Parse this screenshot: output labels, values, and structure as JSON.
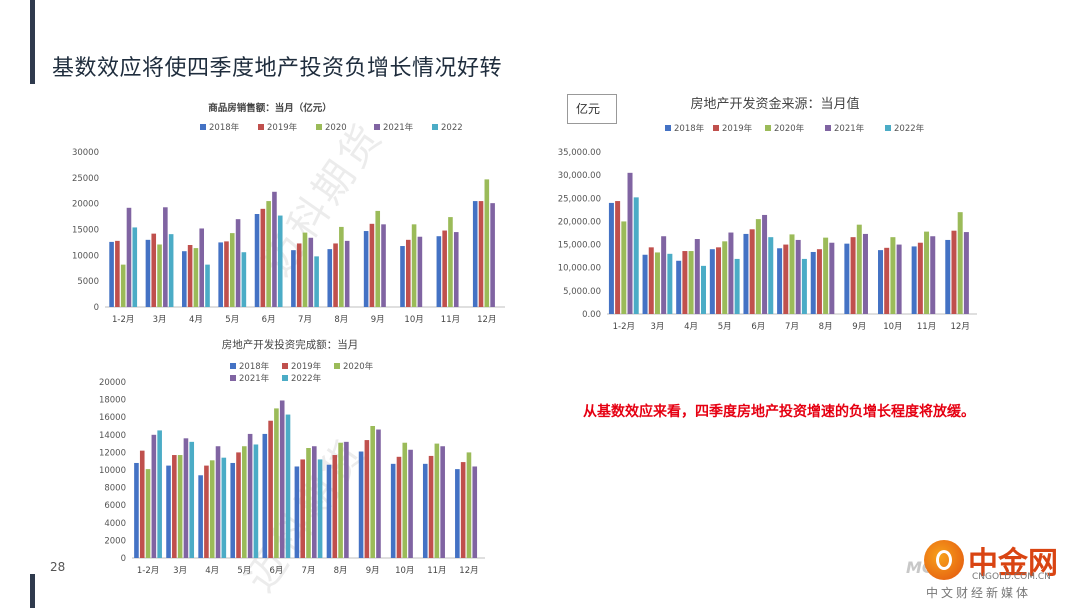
{
  "slide": {
    "title": "基数效应将使四季度地产投资负增长情况好转",
    "page_number": "28",
    "note": "从基数效应来看，四季度房地产投资增速的负增长程度将放缓。",
    "watermark_text": "迈科期货",
    "colors": {
      "s2018": "#4472c4",
      "s2019": "#c0504d",
      "s2020": "#9bbb59",
      "s2021": "#8064a2",
      "s2022": "#4bacc6"
    }
  },
  "logo": {
    "name": "中金网",
    "domain": "CNGOLD.COM.CN",
    "subtitle": "中文财经新媒体",
    "mark": "MOK"
  },
  "chart_data": [
    {
      "type": "bar",
      "title": "商品房销售额：当月（亿元）",
      "categories": [
        "1-2月",
        "3月",
        "4月",
        "5月",
        "6月",
        "7月",
        "8月",
        "9月",
        "10月",
        "11月",
        "12月"
      ],
      "ylim": [
        0,
        30000
      ],
      "yticks": [
        "0",
        "5000",
        "10000",
        "15000",
        "20000",
        "25000",
        "30000"
      ],
      "grid": false,
      "legend": "top",
      "series": [
        {
          "name": "2018年",
          "values": [
            12600,
            13000,
            10800,
            12500,
            18000,
            11000,
            11200,
            14700,
            11800,
            13700,
            20500
          ]
        },
        {
          "name": "2019年",
          "values": [
            12800,
            14200,
            12000,
            12700,
            19000,
            12300,
            12300,
            16100,
            13000,
            14800,
            20500
          ]
        },
        {
          "name": "2020",
          "values": [
            8200,
            12100,
            11400,
            14300,
            20500,
            14400,
            15500,
            18600,
            16000,
            17400,
            24700
          ]
        },
        {
          "name": "2021年",
          "values": [
            19200,
            19300,
            15200,
            17000,
            22300,
            13400,
            12800,
            16000,
            13600,
            14500,
            20100
          ]
        },
        {
          "name": "2022",
          "values": [
            15400,
            14100,
            8200,
            10600,
            17700,
            9800,
            null,
            null,
            null,
            null,
            null
          ]
        }
      ]
    },
    {
      "type": "bar",
      "title": "房地产开发资金来源：当月值",
      "unit": "亿元",
      "categories": [
        "1-2月",
        "3月",
        "4月",
        "5月",
        "6月",
        "7月",
        "8月",
        "9月",
        "10月",
        "11月",
        "12月"
      ],
      "ylim": [
        0,
        35000
      ],
      "yticks": [
        "0.00",
        "5,000.00",
        "10,000.00",
        "15,000.00",
        "20,000.00",
        "25,000.00",
        "30,000.00",
        "35,000.00"
      ],
      "grid": false,
      "legend": "top",
      "series": [
        {
          "name": "2018年",
          "values": [
            24000,
            12800,
            11500,
            14000,
            17300,
            14200,
            13400,
            15200,
            13800,
            14600,
            16000
          ]
        },
        {
          "name": "2019年",
          "values": [
            24400,
            14400,
            13600,
            14400,
            18300,
            15000,
            14000,
            16600,
            14300,
            15400,
            18000
          ]
        },
        {
          "name": "2020年",
          "values": [
            20000,
            13300,
            13600,
            15700,
            20500,
            17200,
            16500,
            19300,
            16600,
            17800,
            22000
          ]
        },
        {
          "name": "2021年",
          "values": [
            30500,
            16800,
            16200,
            17600,
            21400,
            16000,
            15400,
            17300,
            15000,
            16800,
            17700
          ]
        },
        {
          "name": "2022年",
          "values": [
            25200,
            13000,
            10400,
            11900,
            16600,
            11900,
            null,
            null,
            null,
            null,
            null
          ]
        }
      ]
    },
    {
      "type": "bar",
      "title": "房地产开发投资完成额：当月",
      "categories": [
        "1-2月",
        "3月",
        "4月",
        "5月",
        "6月",
        "7月",
        "8月",
        "9月",
        "10月",
        "11月",
        "12月"
      ],
      "ylim": [
        0,
        20000
      ],
      "yticks": [
        "0",
        "2000",
        "4000",
        "6000",
        "8000",
        "10000",
        "12000",
        "14000",
        "16000",
        "18000",
        "20000"
      ],
      "grid": false,
      "legend": "top",
      "series": [
        {
          "name": "2018年",
          "values": [
            10800,
            10500,
            9400,
            10800,
            14100,
            10400,
            10600,
            12100,
            10700,
            10700,
            10100
          ]
        },
        {
          "name": "2019年",
          "values": [
            12200,
            11700,
            10500,
            12000,
            15600,
            11200,
            11700,
            13400,
            11500,
            11600,
            10900
          ]
        },
        {
          "name": "2020年",
          "values": [
            10100,
            11700,
            11100,
            12700,
            17000,
            12500,
            13100,
            15000,
            13100,
            13000,
            12000
          ]
        },
        {
          "name": "2021年",
          "values": [
            14000,
            13600,
            12700,
            14100,
            17900,
            12700,
            13200,
            14600,
            12300,
            12700,
            10400
          ]
        },
        {
          "name": "2022年",
          "values": [
            14500,
            13200,
            11400,
            12900,
            16300,
            11200,
            null,
            null,
            null,
            null,
            null
          ]
        }
      ]
    }
  ]
}
